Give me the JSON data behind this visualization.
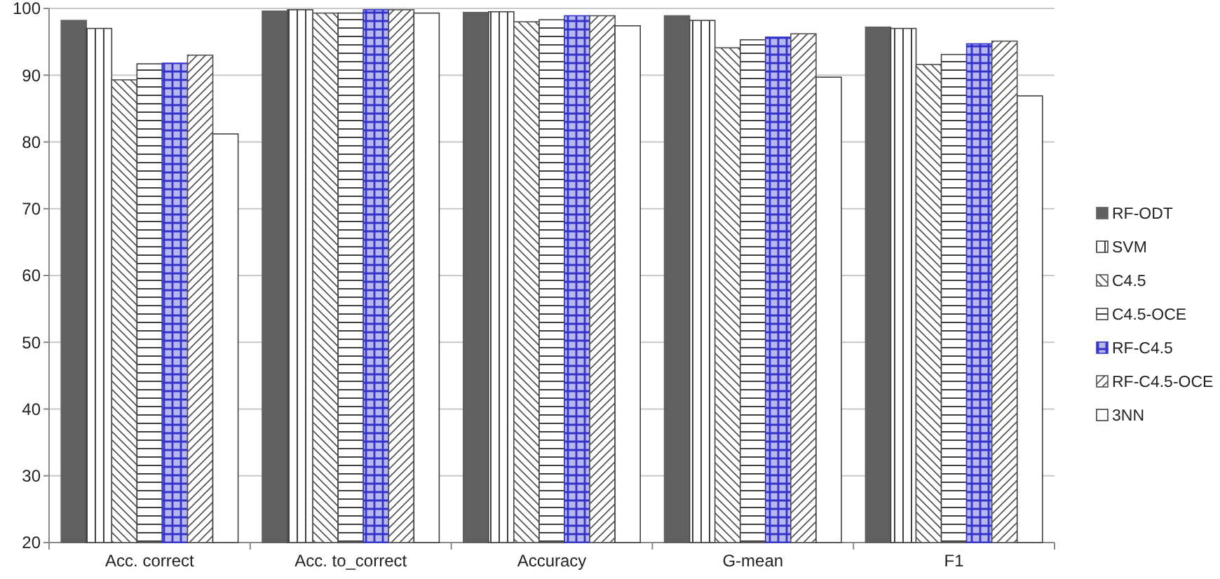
{
  "chart_data": {
    "type": "bar",
    "categories": [
      "Acc. correct",
      "Acc. to_correct",
      "Accuracy",
      "G-mean",
      "F1"
    ],
    "series": [
      {
        "name": "RF-ODT",
        "color": "#606060",
        "values": [
          98.2,
          99.6,
          99.4,
          98.9,
          97.2
        ]
      },
      {
        "name": "SVM",
        "color": "#404040",
        "values": [
          97.0,
          99.8,
          99.5,
          98.2,
          97.0
        ]
      },
      {
        "name": "C4.5",
        "color": "#505050",
        "values": [
          89.3,
          99.3,
          98.0,
          94.1,
          91.6
        ]
      },
      {
        "name": "C4.5-OCE",
        "color": "#404040",
        "values": [
          91.7,
          99.3,
          98.3,
          95.3,
          93.1
        ]
      },
      {
        "name": "RF-C4.5",
        "color": "#3333cc",
        "values": [
          91.8,
          99.8,
          98.9,
          95.7,
          94.7
        ]
      },
      {
        "name": "RF-C4.5-OCE",
        "color": "#505050",
        "values": [
          93.0,
          99.8,
          98.9,
          96.2,
          95.1
        ]
      },
      {
        "name": "3NN",
        "color": "#404040",
        "values": [
          81.2,
          99.3,
          97.4,
          89.7,
          86.9
        ]
      }
    ],
    "ylim": [
      20,
      100
    ],
    "yticks": [
      20,
      30,
      40,
      50,
      60,
      70,
      80,
      90,
      100
    ],
    "grid": "y",
    "legend": "right"
  }
}
